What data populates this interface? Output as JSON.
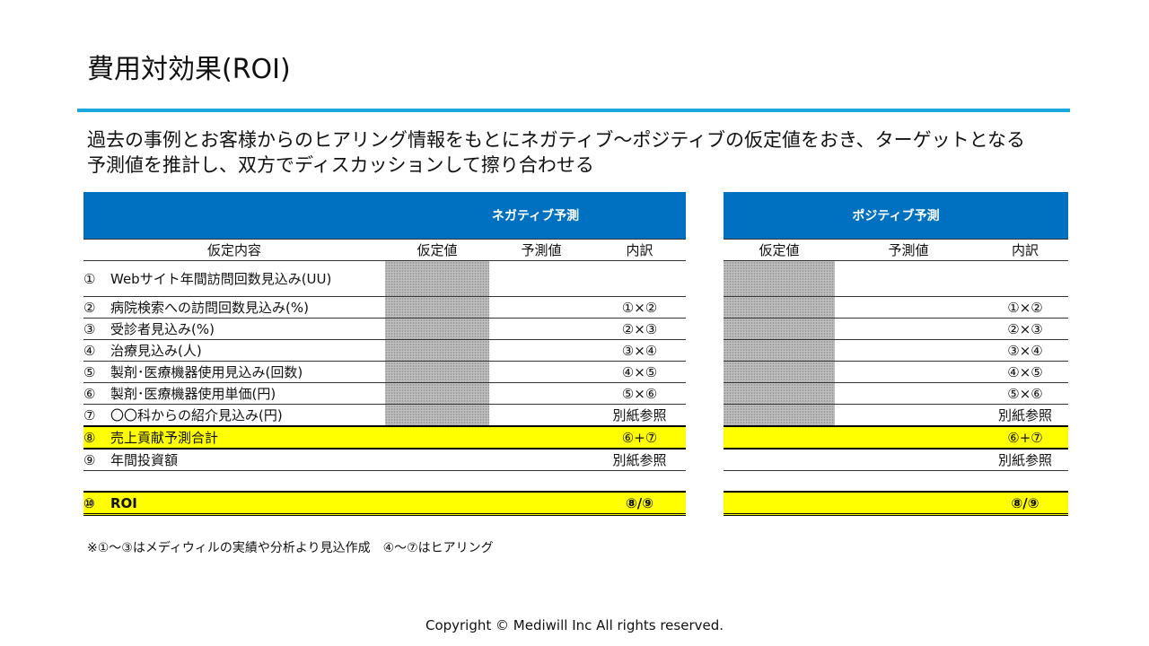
{
  "title": "費用対効果(ROI)",
  "description": [
    "過去の事例とお客様からのヒアリング情報をもとにネガティブ～ポジティブの仮定値をおき、ターゲットとなる",
    "予測値を推計し、双方でディスカッションして擦り合わせる"
  ],
  "negative": {
    "header": "ネガティブ予測",
    "columns": [
      "仮定内容",
      "仮定値",
      "予測値",
      "内訳"
    ]
  },
  "positive": {
    "header": "ポジティブ予測",
    "columns": [
      "仮定値",
      "予測値",
      "内訳"
    ]
  },
  "rows": [
    {
      "num": "①",
      "label": "Webサイト年間訪問回数見込み(UU)",
      "breakdown": ""
    },
    {
      "num": "②",
      "label": "病院検索への訪問回数見込み(%)",
      "breakdown": "①×②"
    },
    {
      "num": "③",
      "label": "受診者見込み(%)",
      "breakdown": "②×③"
    },
    {
      "num": "④",
      "label": "治療見込み(人)",
      "breakdown": "③×④"
    },
    {
      "num": "⑤",
      "label": "製剤･医療機器使用見込み(回数)",
      "breakdown": "④×⑤"
    },
    {
      "num": "⑥",
      "label": "製剤･医療機器使用単価(円)",
      "breakdown": "⑤×⑥"
    },
    {
      "num": "⑦",
      "label": "〇〇科からの紹介見込み(円)",
      "breakdown": "別紙参照"
    },
    {
      "num": "⑧",
      "label": "売上貢献予測合計",
      "breakdown": "⑥+⑦"
    },
    {
      "num": "⑨",
      "label": "年間投資額",
      "breakdown": "別紙参照"
    },
    {
      "num": "⑩",
      "label": "ROI",
      "breakdown": "⑧/⑨"
    }
  ],
  "note": "※①～③はメディウィルの実績や分析より見込作成　④～⑦はヒアリング",
  "copyright": "Copyright © Mediwill Inc All rights reserved.",
  "colors": {
    "header_bg": "#0070c0",
    "highlight": "#ffff00",
    "accent_rule": "#1aa6df"
  }
}
